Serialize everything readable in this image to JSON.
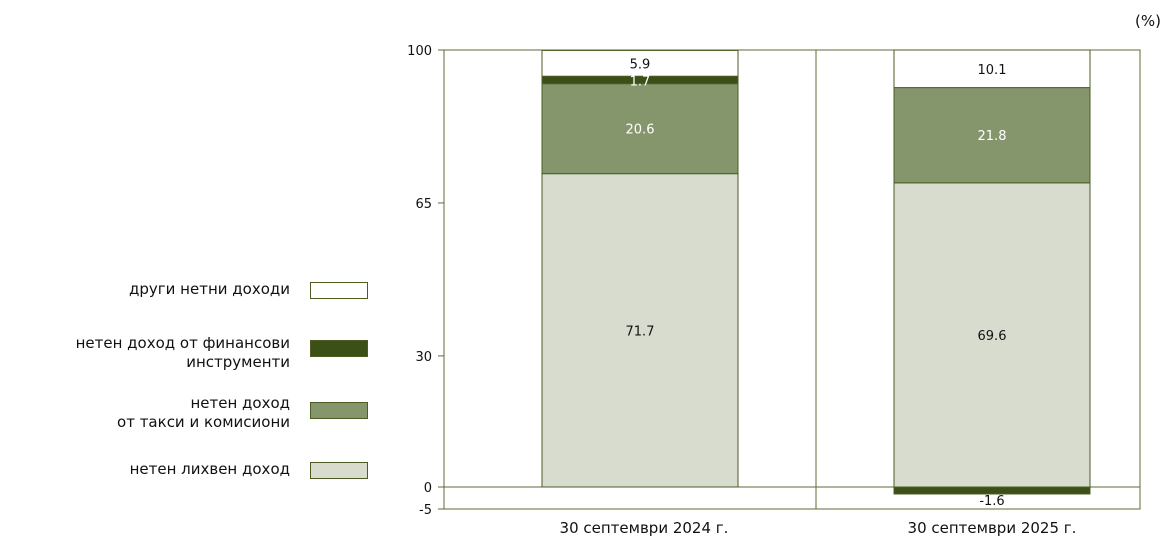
{
  "unit_label": "(%)",
  "legend": [
    {
      "label_lines": [
        "други нетни доходи"
      ],
      "color": "#ffffff"
    },
    {
      "label_lines": [
        "нетен доход от финансови",
        "инструменти"
      ],
      "color": "#3b4f16"
    },
    {
      "label_lines": [
        "нетен доход",
        "от такси и комисиони"
      ],
      "color": "#86966c"
    },
    {
      "label_lines": [
        "нетен лихвен доход"
      ],
      "color": "#d7dccf"
    }
  ],
  "chart_data": {
    "type": "bar",
    "stacked": true,
    "categories": [
      "30 септември 2024 г.",
      "30 септември 2025 г."
    ],
    "series": [
      {
        "name": "нетен лихвен доход",
        "values": [
          71.7,
          69.6
        ],
        "color": "#d7dccf"
      },
      {
        "name": "нетен доход от такси и комисиони",
        "values": [
          20.6,
          21.8
        ],
        "color": "#86966c"
      },
      {
        "name": "нетен доход от финансови инструменти",
        "values": [
          1.7,
          -1.6
        ],
        "color": "#3b4f16"
      },
      {
        "name": "други нетни доходи",
        "values": [
          5.9,
          10.1
        ],
        "color": "#ffffff"
      }
    ],
    "data_labels": [
      {
        "category": 0,
        "series": 0,
        "text": "71.7",
        "color": "#111111"
      },
      {
        "category": 0,
        "series": 1,
        "text": "20.6",
        "color": "#ffffff"
      },
      {
        "category": 0,
        "series": 2,
        "text": "1.7",
        "color": "#ffffff"
      },
      {
        "category": 0,
        "series": 3,
        "text": "5.9",
        "color": "#111111"
      },
      {
        "category": 1,
        "series": 0,
        "text": "69.6",
        "color": "#111111"
      },
      {
        "category": 1,
        "series": 1,
        "text": "21.8",
        "color": "#ffffff"
      },
      {
        "category": 1,
        "series": 2,
        "text": "-1.6",
        "color": "#111111"
      },
      {
        "category": 1,
        "series": 3,
        "text": "10.1",
        "color": "#111111"
      }
    ],
    "yticks": [
      -5,
      0,
      30,
      65,
      100
    ],
    "ylim": [
      -5,
      100
    ],
    "xlabel": "",
    "ylabel": "",
    "grid": false
  }
}
